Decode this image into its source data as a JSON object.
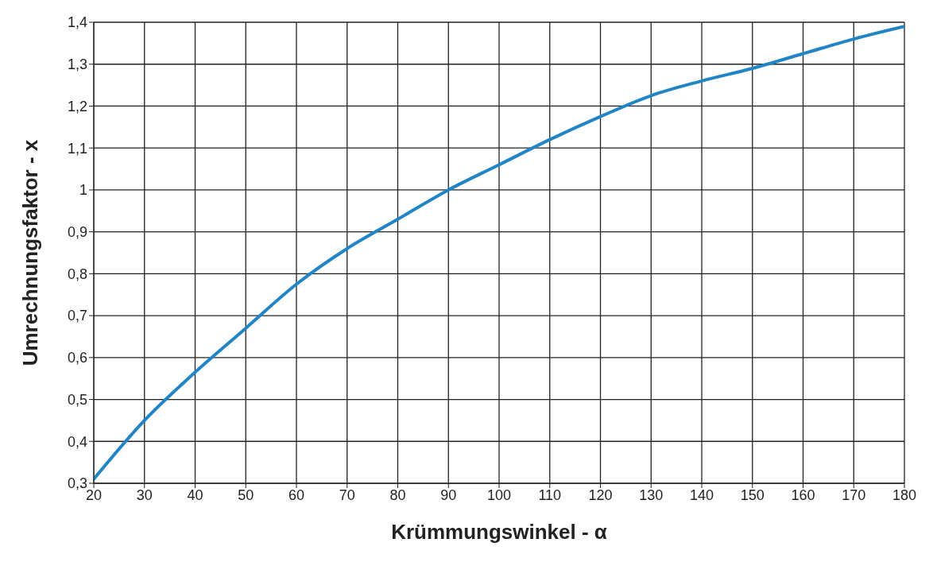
{
  "chart_data": {
    "type": "line",
    "xlabel": "Krümmungswinkel - α",
    "ylabel": "Umrechnungsfaktor - x",
    "x": [
      20,
      30,
      40,
      50,
      60,
      70,
      80,
      90,
      100,
      110,
      120,
      130,
      140,
      150,
      160,
      170,
      180
    ],
    "series": [
      {
        "color": "#2185c5",
        "values": [
          0.31,
          0.45,
          0.565,
          0.67,
          0.775,
          0.86,
          0.93,
          1.0,
          1.06,
          1.12,
          1.175,
          1.225,
          1.26,
          1.29,
          1.325,
          1.36,
          1.39
        ]
      }
    ],
    "xlim": [
      20,
      180
    ],
    "xticks": [
      20,
      30,
      40,
      50,
      60,
      70,
      80,
      90,
      100,
      110,
      120,
      130,
      140,
      150,
      160,
      170,
      180
    ],
    "ylim": [
      0.3,
      1.4
    ],
    "yticks": [
      {
        "value": 0.3,
        "label": "0,3"
      },
      {
        "value": 0.4,
        "label": "0,4"
      },
      {
        "value": 0.5,
        "label": "0,5"
      },
      {
        "value": 0.6,
        "label": "0,6"
      },
      {
        "value": 0.7,
        "label": "0,7"
      },
      {
        "value": 0.8,
        "label": "0,8"
      },
      {
        "value": 0.9,
        "label": "0,9"
      },
      {
        "value": 1,
        "label": "1"
      },
      {
        "value": 1.1,
        "label": "1,1"
      },
      {
        "value": 1.2,
        "label": "1,2"
      },
      {
        "value": 1.3,
        "label": "1,3"
      },
      {
        "value": 1.4,
        "label": "1,4"
      }
    ],
    "grid": true,
    "marker": "none",
    "line_style": "solid"
  }
}
